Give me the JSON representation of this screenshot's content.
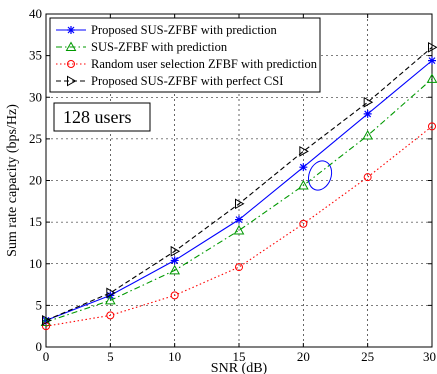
{
  "chart_data": {
    "type": "line",
    "title": "",
    "xlabel": "SNR (dB)",
    "ylabel": "Sum rate capacity (bps/Hz)",
    "xlim": [
      0,
      30
    ],
    "ylim": [
      0,
      40
    ],
    "xticks": [
      0,
      5,
      10,
      15,
      20,
      25,
      30
    ],
    "yticks": [
      0,
      5,
      10,
      15,
      20,
      25,
      30,
      35,
      40
    ],
    "grid": true,
    "legend_position": "top-left",
    "x": [
      0,
      5,
      10,
      15,
      20,
      25,
      30
    ],
    "series": [
      {
        "name": "Proposed SUS-ZFBF with prediction",
        "values": [
          3.2,
          6.2,
          10.4,
          15.3,
          21.6,
          28.0,
          34.4
        ],
        "color": "#0000ff",
        "style": "solid",
        "marker": "star"
      },
      {
        "name": "SUS-ZFBF with prediction",
        "values": [
          3.0,
          5.6,
          9.2,
          14.0,
          19.4,
          25.4,
          32.2
        ],
        "color": "#009900",
        "style": "dashdot",
        "marker": "triangle-up"
      },
      {
        "name": "Random user selection ZFBF with prediction",
        "values": [
          2.5,
          3.8,
          6.2,
          9.6,
          14.8,
          20.4,
          26.5
        ],
        "color": "#ff0000",
        "style": "dotted",
        "marker": "circle"
      },
      {
        "name": "Proposed SUS-ZFBF with perfect CSI",
        "values": [
          3.2,
          6.5,
          11.5,
          17.2,
          23.5,
          29.4,
          36.0
        ],
        "color": "#000000",
        "style": "dashed",
        "marker": "triangle-right"
      }
    ],
    "annotations": [
      {
        "text": "128 users"
      }
    ]
  }
}
